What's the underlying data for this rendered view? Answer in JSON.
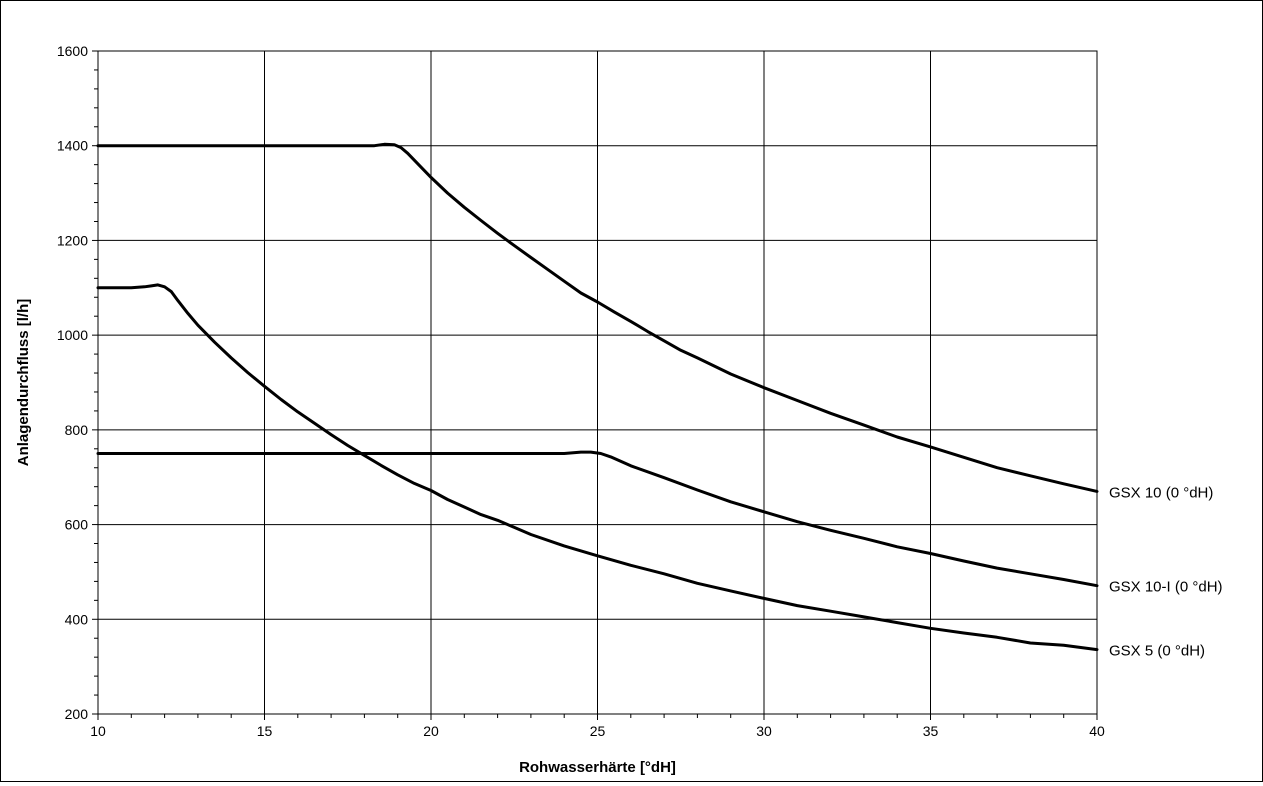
{
  "chart_data": {
    "type": "line",
    "title": "",
    "xlabel": "Rohwasserhärte [°dH]",
    "ylabel": "Anlagendurchfluss [l/h]",
    "xlim": [
      10,
      40
    ],
    "ylim": [
      200,
      1600
    ],
    "x_ticks": [
      10,
      15,
      20,
      25,
      30,
      35,
      40
    ],
    "y_ticks": [
      200,
      400,
      600,
      800,
      1000,
      1200,
      1400,
      1600
    ],
    "grid": true,
    "legend": "none",
    "line_color": "#000000",
    "series": [
      {
        "name": "GSX 10 (0 °dH)",
        "x": [
          10,
          11,
          12,
          13,
          14,
          15,
          16,
          17,
          18,
          18.3,
          18.6,
          18.9,
          19.1,
          19.3,
          19.6,
          20,
          20.5,
          21,
          21.5,
          22,
          22.5,
          23,
          23.5,
          24,
          24.5,
          25,
          25.5,
          26,
          26.5,
          27,
          27.5,
          28,
          29,
          30,
          31,
          32,
          33,
          34,
          35,
          36,
          37,
          38,
          39,
          40
        ],
        "y": [
          1400,
          1400,
          1400,
          1400,
          1400,
          1400,
          1400,
          1400,
          1400,
          1400,
          1403,
          1402,
          1396,
          1384,
          1362,
          1333,
          1300,
          1270,
          1242,
          1215,
          1189,
          1164,
          1139,
          1114,
          1089,
          1070,
          1049,
          1029,
          1008,
          988,
          968,
          952,
          918,
          889,
          862,
          835,
          810,
          785,
          764,
          742,
          720,
          703,
          686,
          670
        ]
      },
      {
        "name": "GSX 10-I (0 °dH)",
        "x": [
          10,
          12,
          14,
          16,
          18,
          20,
          22,
          24,
          24.5,
          24.8,
          25.1,
          25.4,
          26,
          27,
          28,
          29,
          30,
          31,
          32,
          33,
          34,
          35,
          36,
          37,
          38,
          39,
          40
        ],
        "y": [
          750,
          750,
          750,
          750,
          750,
          750,
          750,
          750,
          753,
          753,
          750,
          743,
          724,
          699,
          673,
          648,
          627,
          606,
          588,
          571,
          553,
          539,
          523,
          508,
          496,
          484,
          471
        ]
      },
      {
        "name": "GSX 5 (0 °dH)",
        "x": [
          10,
          10.5,
          11,
          11.4,
          11.6,
          11.8,
          12,
          12.2,
          12.4,
          12.7,
          13,
          13.5,
          14,
          14.5,
          15,
          15.5,
          16,
          16.5,
          17,
          17.5,
          18,
          18.5,
          19,
          19.5,
          20,
          20.5,
          21,
          21.5,
          22,
          22.5,
          23,
          24,
          25,
          26,
          27,
          28,
          29,
          30,
          31,
          32,
          33,
          34,
          35,
          36,
          37,
          38,
          39,
          40
        ],
        "y": [
          1100,
          1100,
          1100,
          1102,
          1104,
          1106,
          1102,
          1092,
          1073,
          1046,
          1021,
          985,
          952,
          921,
          892,
          864,
          838,
          814,
          790,
          767,
          746,
          725,
          705,
          687,
          672,
          653,
          637,
          621,
          609,
          594,
          579,
          555,
          534,
          514,
          496,
          476,
          460,
          444,
          429,
          417,
          405,
          393,
          381,
          371,
          362,
          350,
          345,
          336
        ]
      }
    ]
  }
}
